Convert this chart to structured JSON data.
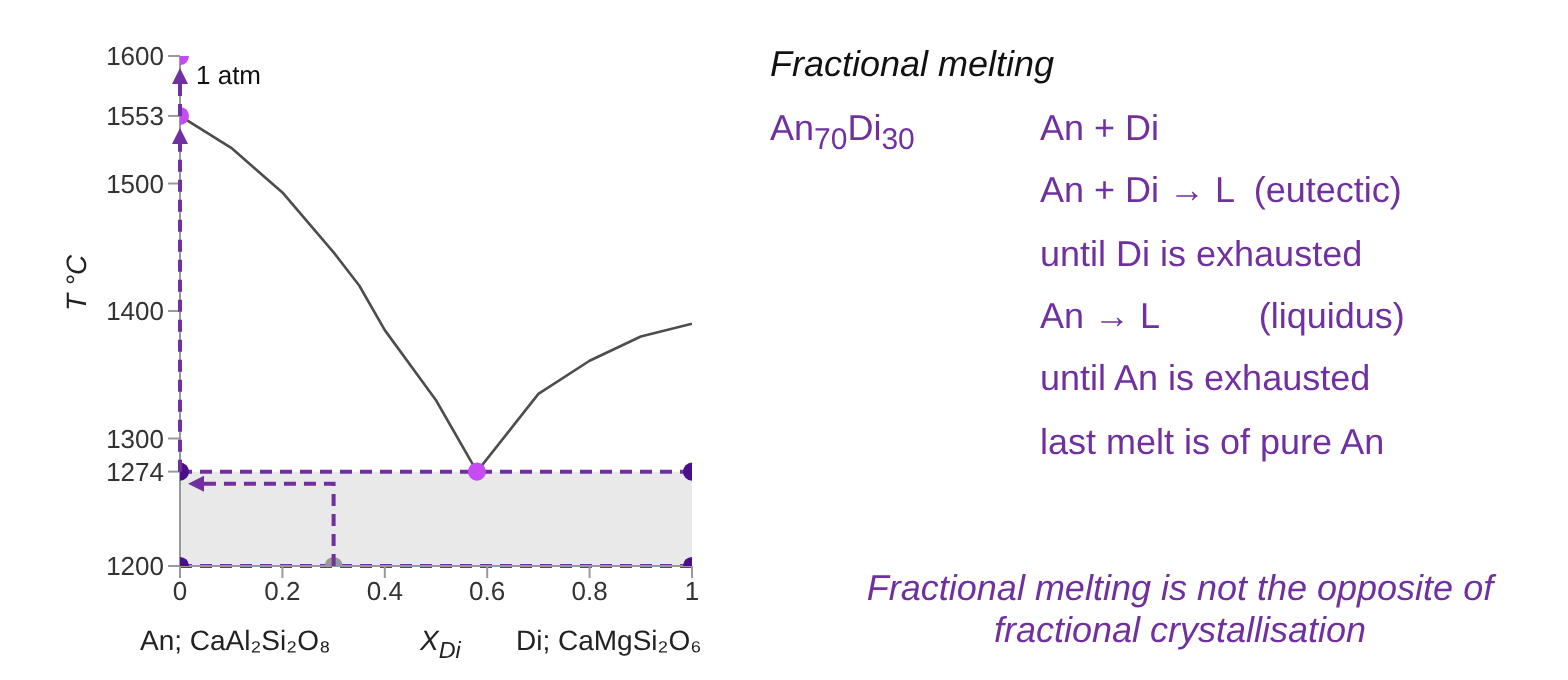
{
  "chart_data": {
    "type": "line",
    "title": "Fractional melting",
    "xlabel": "X$_{Di}$",
    "ylabel": "T °C",
    "xlim": [
      0,
      1
    ],
    "xticks": [
      0,
      0.2,
      0.4,
      0.6,
      0.8,
      1
    ],
    "ylim": [
      1200,
      1600
    ],
    "yticks": [
      1200,
      1274,
      1300,
      1400,
      1500,
      1553,
      1600
    ],
    "grid": false,
    "series": [
      {
        "color": "#4d4d4d",
        "line_style": "solid",
        "x": [
          0,
          0.1,
          0.2,
          0.3,
          0.35,
          0.4,
          0.5,
          0.58
        ],
        "values": [
          1553,
          1528,
          1493,
          1446,
          1420,
          1385,
          1330,
          1274
        ]
      },
      {
        "color": "#4d4d4d",
        "line_style": "solid",
        "x": [
          0.58,
          0.7,
          0.8,
          0.9,
          1
        ],
        "values": [
          1274,
          1335,
          1361,
          1380,
          1390
        ]
      },
      {
        "type": "scatter",
        "x": [
          0,
          0,
          0,
          0,
          1,
          1,
          0.58,
          0.3
        ],
        "values": [
          1600,
          1553,
          1274,
          1200,
          1274,
          1200,
          1274,
          1200
        ],
        "colors": [
          "#c44cf2",
          "#c44cf2",
          "#4b0f8a",
          "#4b0f8a",
          "#4b0f8a",
          "#4b0f8a",
          "#c44cf2",
          "#999999"
        ]
      }
    ],
    "ref_lines": [
      {
        "axis": "y",
        "value": 1274,
        "color": "#7030a0",
        "line_style": "dashed"
      },
      {
        "axis": "y",
        "value": 1200,
        "color": "#7030a0",
        "line_style": "dashed"
      }
    ],
    "bands": [
      {
        "axis": "y",
        "from": 1200,
        "to": 1274,
        "color": "#e9e9e9"
      }
    ],
    "annotations": [
      "An; CaAl₂Si₂O₈",
      "Di; CaMgSi₂O₆",
      "1 atm",
      "An$_{70}$Di$_{30}$",
      "An + Di",
      "An + Di → L  (eutectic)",
      "until Di is exhausted",
      "An → L          (liquidus)",
      "until An is exhausted",
      "last melt is of pure An",
      "Fractional melting is not the opposite of fractional crystallisation"
    ]
  }
}
